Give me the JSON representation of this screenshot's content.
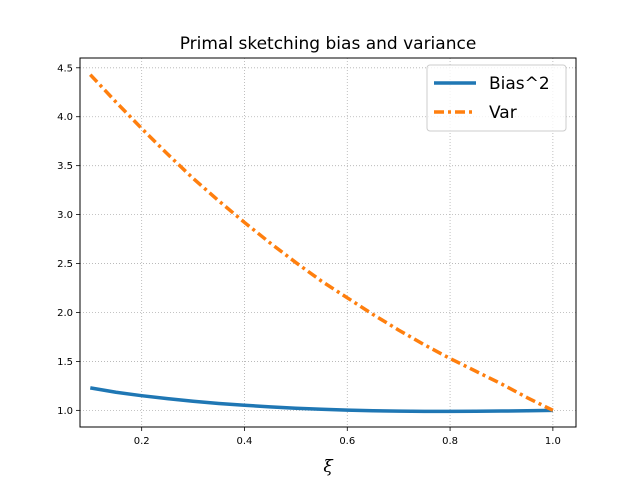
{
  "chart_data": {
    "type": "line",
    "title": "Primal sketching bias and variance",
    "xlabel": "ξ",
    "ylabel": "",
    "xlim": [
      0.08,
      1.045
    ],
    "ylim": [
      0.83,
      4.6
    ],
    "x_ticks": [
      0.2,
      0.4,
      0.6,
      0.8,
      1.0
    ],
    "x_tick_labels": [
      "0.2",
      "0.4",
      "0.6",
      "0.8",
      "1.0"
    ],
    "y_ticks": [
      1.0,
      1.5,
      2.0,
      2.5,
      3.0,
      3.5,
      4.0,
      4.5
    ],
    "y_tick_labels": [
      "1.0",
      "1.5",
      "2.0",
      "2.5",
      "3.0",
      "3.5",
      "4.0",
      "4.5"
    ],
    "grid": true,
    "legend_position": "top-right",
    "x": [
      0.1,
      0.15,
      0.2,
      0.25,
      0.3,
      0.35,
      0.4,
      0.45,
      0.5,
      0.55,
      0.6,
      0.65,
      0.7,
      0.75,
      0.8,
      0.85,
      0.9,
      0.95,
      1.0
    ],
    "series": [
      {
        "name": "Bias^2",
        "color": "#1f77b4",
        "style": "solid",
        "values": [
          1.23,
          1.185,
          1.15,
          1.12,
          1.093,
          1.07,
          1.052,
          1.036,
          1.022,
          1.011,
          1.003,
          0.996,
          0.992,
          0.99,
          0.99,
          0.991,
          0.993,
          0.996,
          1.0
        ]
      },
      {
        "name": "Var",
        "color": "#ff7f0e",
        "style": "dashdot",
        "values": [
          4.43,
          4.15,
          3.88,
          3.62,
          3.37,
          3.14,
          2.92,
          2.71,
          2.51,
          2.32,
          2.15,
          1.98,
          1.82,
          1.67,
          1.53,
          1.4,
          1.27,
          1.13,
          1.0
        ]
      }
    ]
  }
}
